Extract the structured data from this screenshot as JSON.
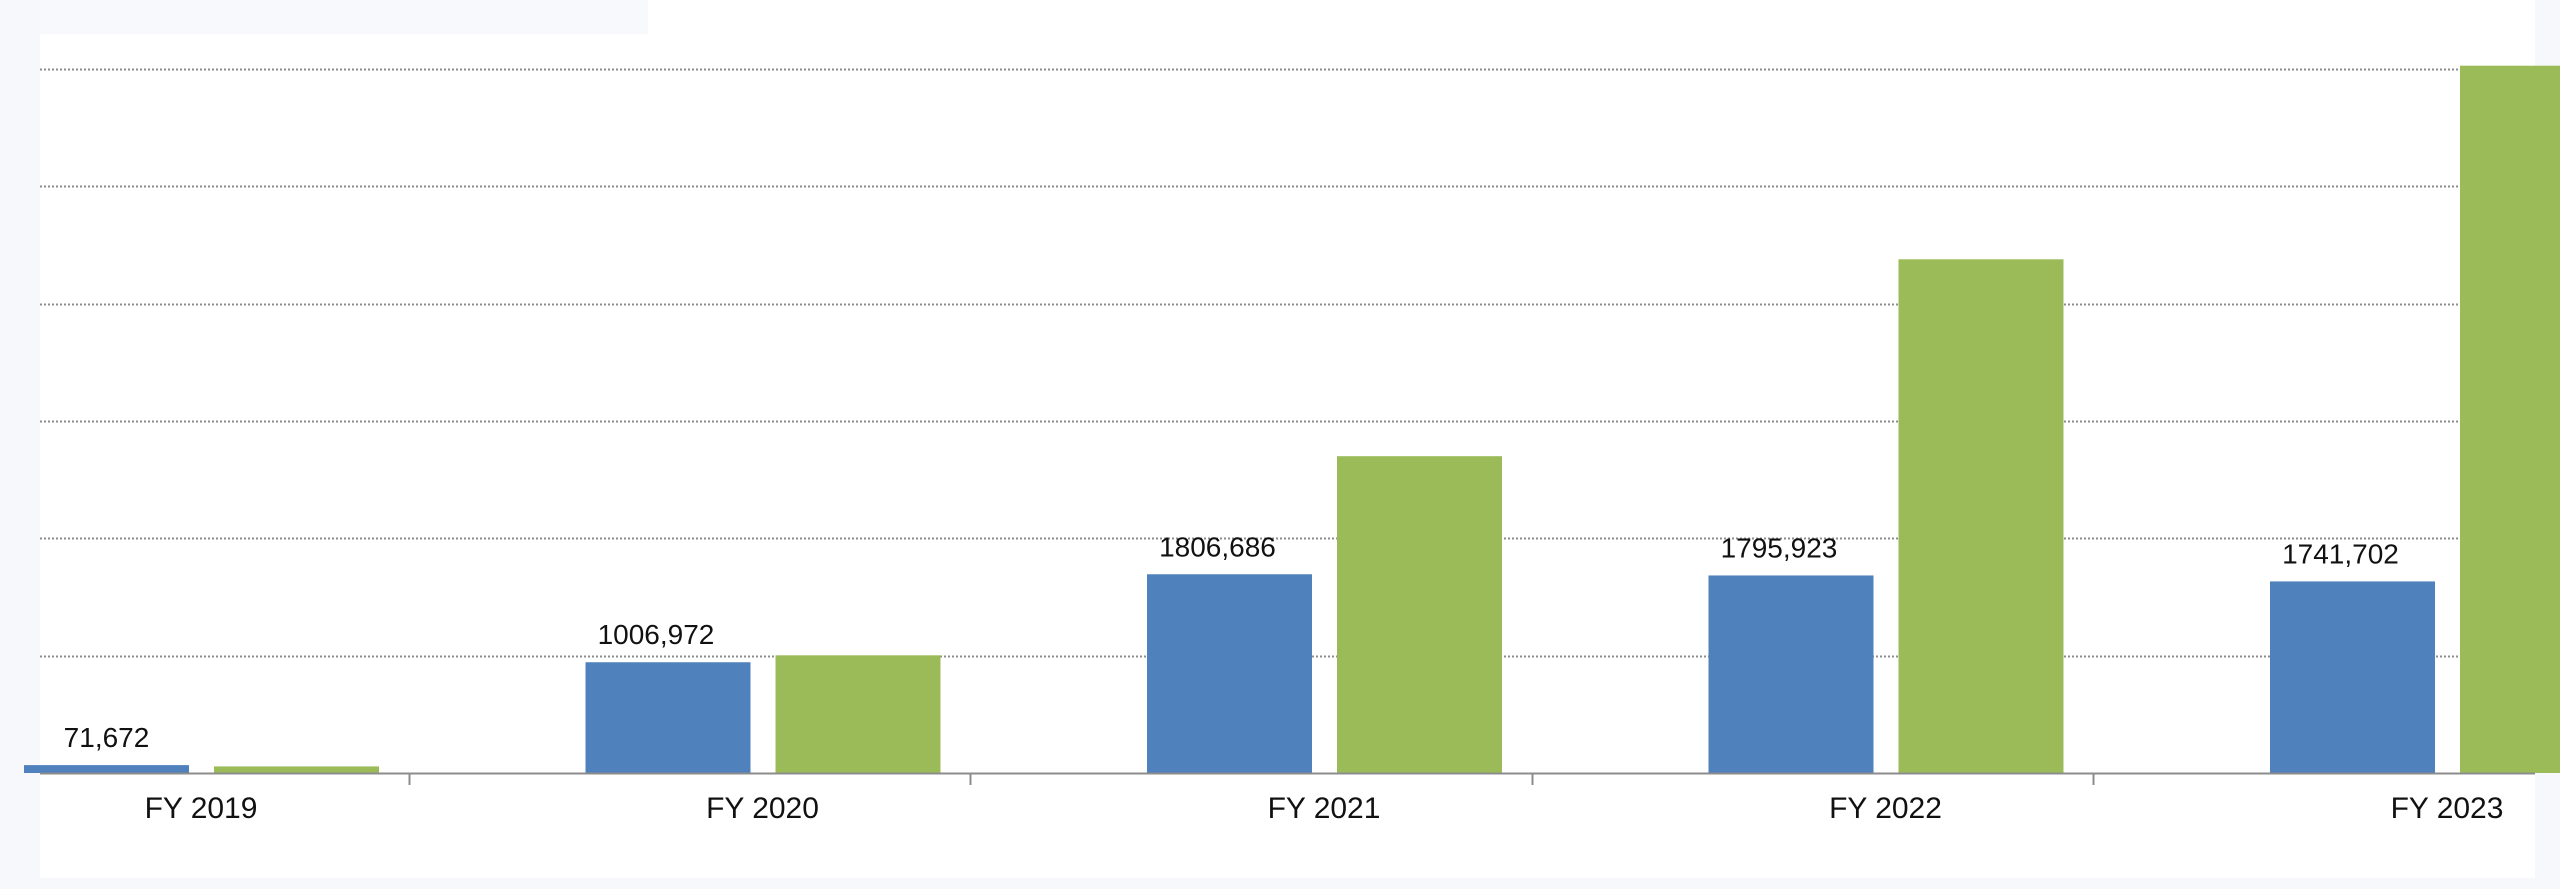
{
  "chart_data": {
    "type": "bar",
    "categories": [
      "FY 2019",
      "FY 2020",
      "FY 2021",
      "FY 2022",
      "FY 2023"
    ],
    "series": [
      {
        "values": [
          71672,
          1006972,
          1806686,
          1795923,
          1741702
        ],
        "color": "#4f81bd",
        "show_labels": true
      },
      {
        "values": [
          60000,
          1070000,
          2880000,
          4670000,
          6430000
        ],
        "color": "#9bbb59",
        "show_labels": false
      }
    ],
    "data_labels": [
      "71,672",
      "1006,972",
      "1806,686",
      "1795,923",
      "1741,702"
    ],
    "ylim": [
      0,
      6400000
    ],
    "grid": true,
    "legend": "none",
    "title": "",
    "xlabel": "",
    "ylabel": ""
  }
}
